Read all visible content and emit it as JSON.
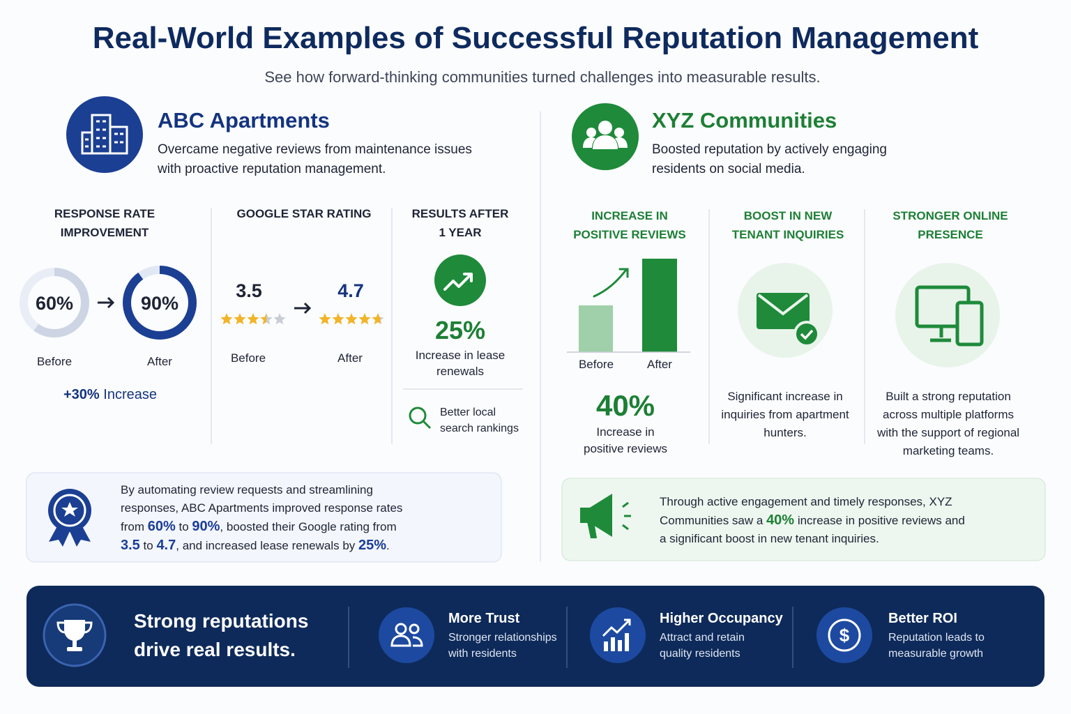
{
  "header": {
    "title": "Real-World Examples of Successful Reputation Management",
    "subtitle": "See how forward-thinking communities turned challenges into measurable results."
  },
  "abc": {
    "name": "ABC Apartments",
    "description": "Overcame negative reviews from maintenance issues with proactive reputation management.",
    "response": {
      "heading": "RESPONSE RATE IMPROVEMENT",
      "before": "60%",
      "after": "90%",
      "before_label": "Before",
      "after_label": "After",
      "change": "+30%",
      "change_text": "Increase"
    },
    "rating": {
      "heading": "GOOGLE STAR RATING",
      "before": "3.5",
      "after": "4.7",
      "before_label": "Before",
      "after_label": "After"
    },
    "results": {
      "heading": "RESULTS AFTER 1 YEAR",
      "value": "25%",
      "text": "Increase in lease renewals",
      "extra": "Better local search rankings"
    },
    "summary": [
      "By automating review requests and streamlining responses, ABC Apartments improved response rates from ",
      "60%",
      " to ",
      "90%",
      ", boosted their Google rating from ",
      "3.5",
      " to ",
      "4.7",
      ", and increased lease renewals by ",
      "25%",
      "."
    ]
  },
  "xyz": {
    "name": "XYZ Communities",
    "description": "Boosted reputation by actively engaging residents on social media.",
    "reviews": {
      "heading": "INCREASE IN POSITIVE REVIEWS",
      "before_label": "Before",
      "after_label": "After",
      "value": "40%",
      "text": "Increase in positive reviews"
    },
    "inquiries": {
      "heading": "BOOST IN NEW TENANT INQUIRIES",
      "text": "Significant increase in inquiries from apartment hunters."
    },
    "presence": {
      "heading": "STRONGER ONLINE PRESENCE",
      "text": "Built a strong reputation across multiple platforms with the support of regional marketing teams."
    },
    "summary": [
      "Through active engagement and timely responses, XYZ Communities saw a ",
      "40%",
      " increase in positive reviews and a significant boost in new tenant inquiries."
    ]
  },
  "footer": {
    "tagline": "Strong reputations drive real results.",
    "items": [
      {
        "title": "More Trust",
        "text": "Stronger relationships with residents"
      },
      {
        "title": "Higher Occupancy",
        "text": "Attract and retain quality residents"
      },
      {
        "title": "Better ROI",
        "text": "Reputation leads to measurable growth"
      }
    ]
  }
}
